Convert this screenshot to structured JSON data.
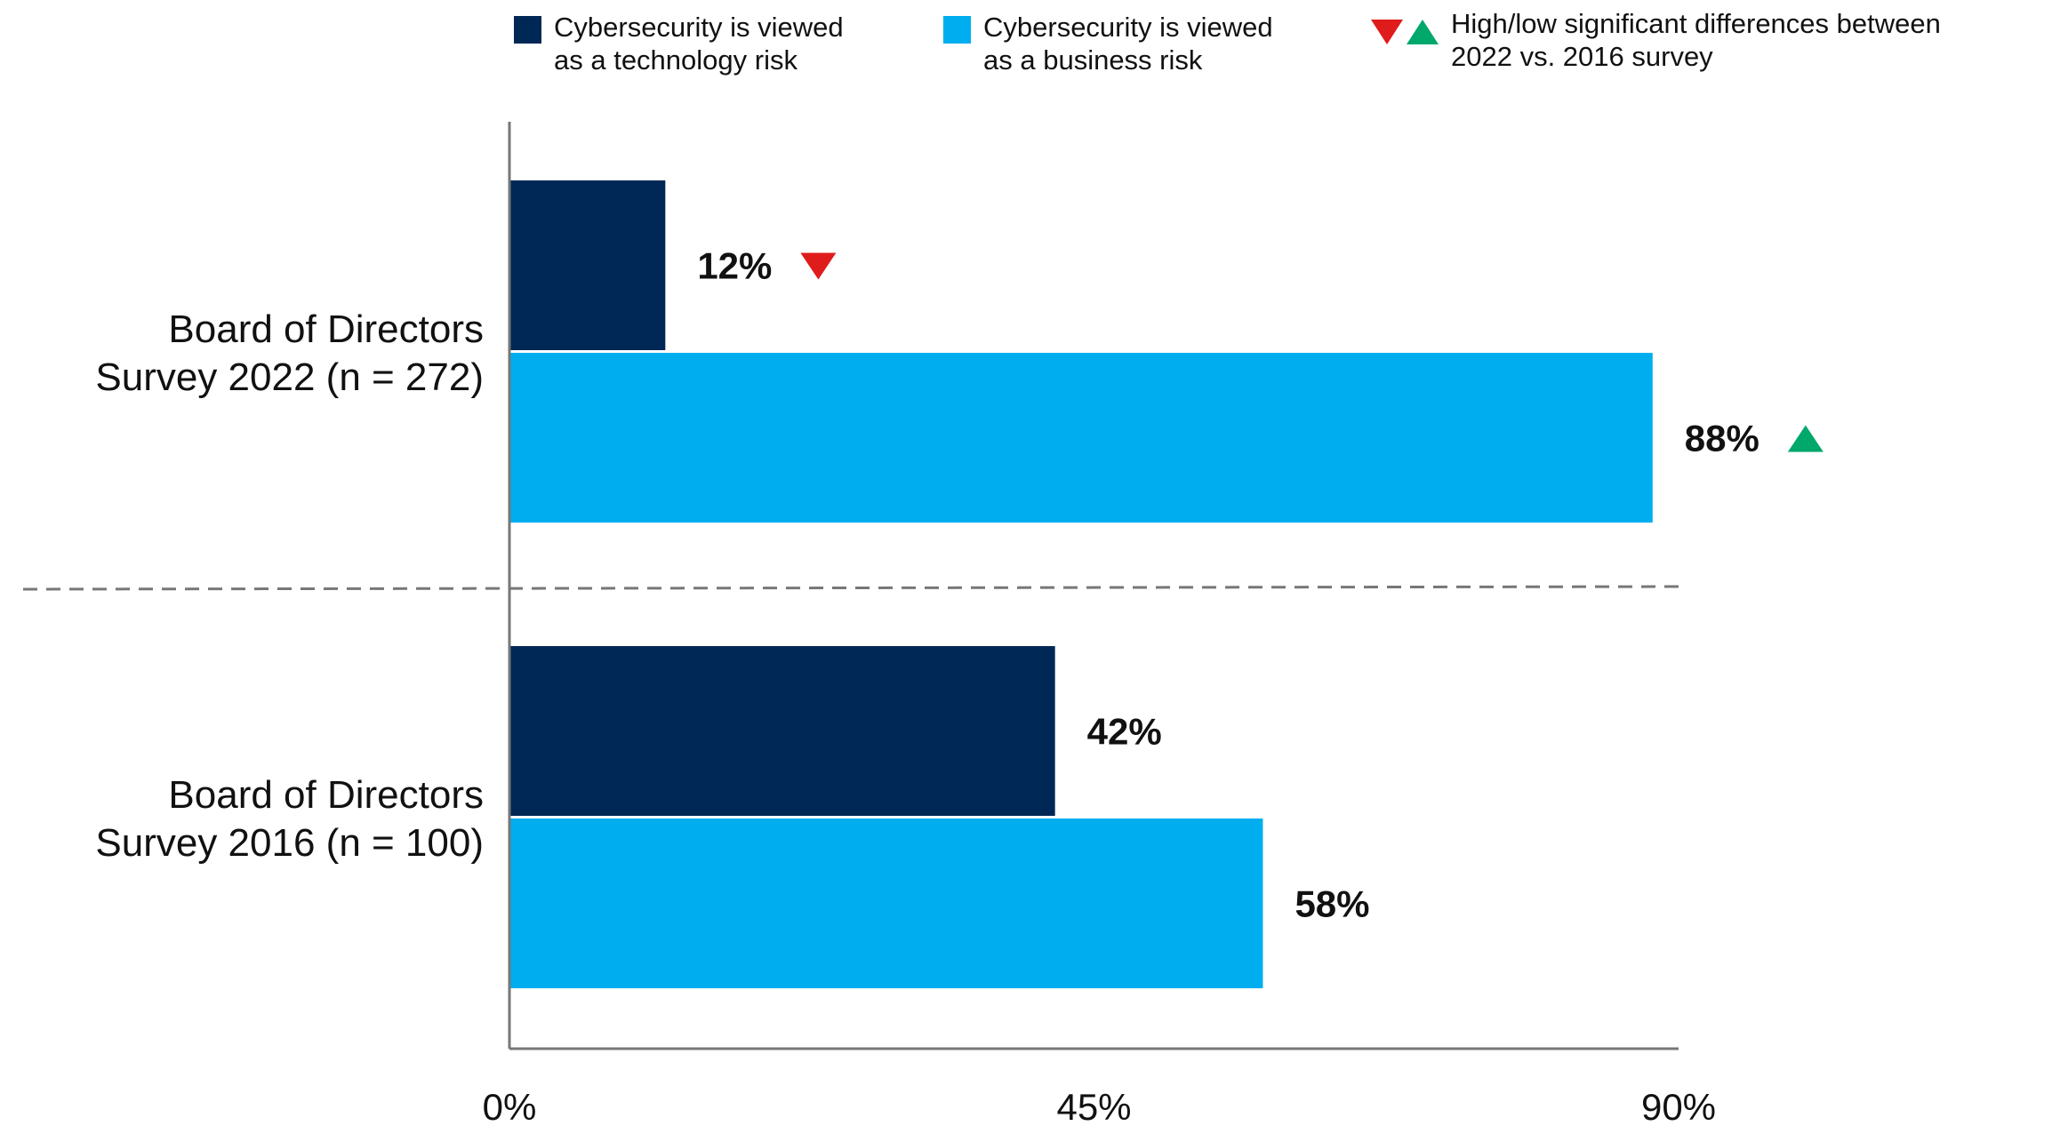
{
  "chart_data": {
    "type": "bar",
    "orientation": "horizontal",
    "categories": [
      [
        "Board of Directors",
        "Survey 2022 (n = 272)"
      ],
      [
        "Board of Directors",
        "Survey 2016 (n = 100)"
      ]
    ],
    "series": [
      {
        "name": [
          "Cybersecurity is viewed",
          "as a technology risk"
        ],
        "values": [
          12,
          42
        ],
        "labels": [
          "12%",
          "42%"
        ],
        "color": "#002856",
        "markers": [
          "down",
          null
        ]
      },
      {
        "name": [
          "Cybersecurity is viewed",
          "as a business risk"
        ],
        "values": [
          88,
          58
        ],
        "labels": [
          "88%",
          "58%"
        ],
        "color": "#00aeef",
        "markers": [
          "up",
          null
        ]
      }
    ],
    "significance_legend": [
      "High/low significant differences between",
      "2022 vs. 2016 survey"
    ],
    "marker_colors": {
      "down": "#e01b1b",
      "up": "#00a86b"
    },
    "xlim": [
      0,
      90
    ],
    "xticks": [
      0,
      45,
      90
    ],
    "xtick_labels": [
      "0%",
      "45%",
      "90%"
    ],
    "grid": false,
    "legend_position": "top"
  }
}
